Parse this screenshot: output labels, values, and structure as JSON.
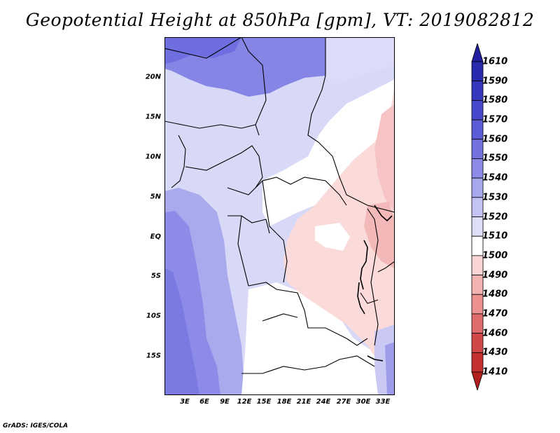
{
  "title": "Geopotential Height at 850hPa [gpm], VT: 2019082812",
  "footer": "GrADS: IGES/COLA",
  "map": {
    "lat_labels": [
      "20N",
      "15N",
      "10N",
      "5N",
      "EQ",
      "5S",
      "10S",
      "15S"
    ],
    "lon_labels": [
      "3E",
      "6E",
      "9E",
      "12E",
      "15E",
      "18E",
      "21E",
      "24E",
      "27E",
      "30E",
      "33E"
    ]
  },
  "legend": {
    "levels": [
      "1610",
      "1590",
      "1580",
      "1570",
      "1560",
      "1550",
      "1540",
      "1530",
      "1520",
      "1510",
      "1500",
      "1490",
      "1480",
      "1470",
      "1460",
      "1430",
      "1410"
    ],
    "colors": [
      "#1f1f9f",
      "#2a2aae",
      "#3737bd",
      "#4848cc",
      "#5c5cd6",
      "#7373e0",
      "#8c8ce8",
      "#a7a7ee",
      "#c4c4f4",
      "#dedef9",
      "#ffffff",
      "#fbd4d4",
      "#f4b3b3",
      "#ec9090",
      "#e06b6b",
      "#d14848",
      "#c42f2f",
      "#b01e1e"
    ]
  }
}
